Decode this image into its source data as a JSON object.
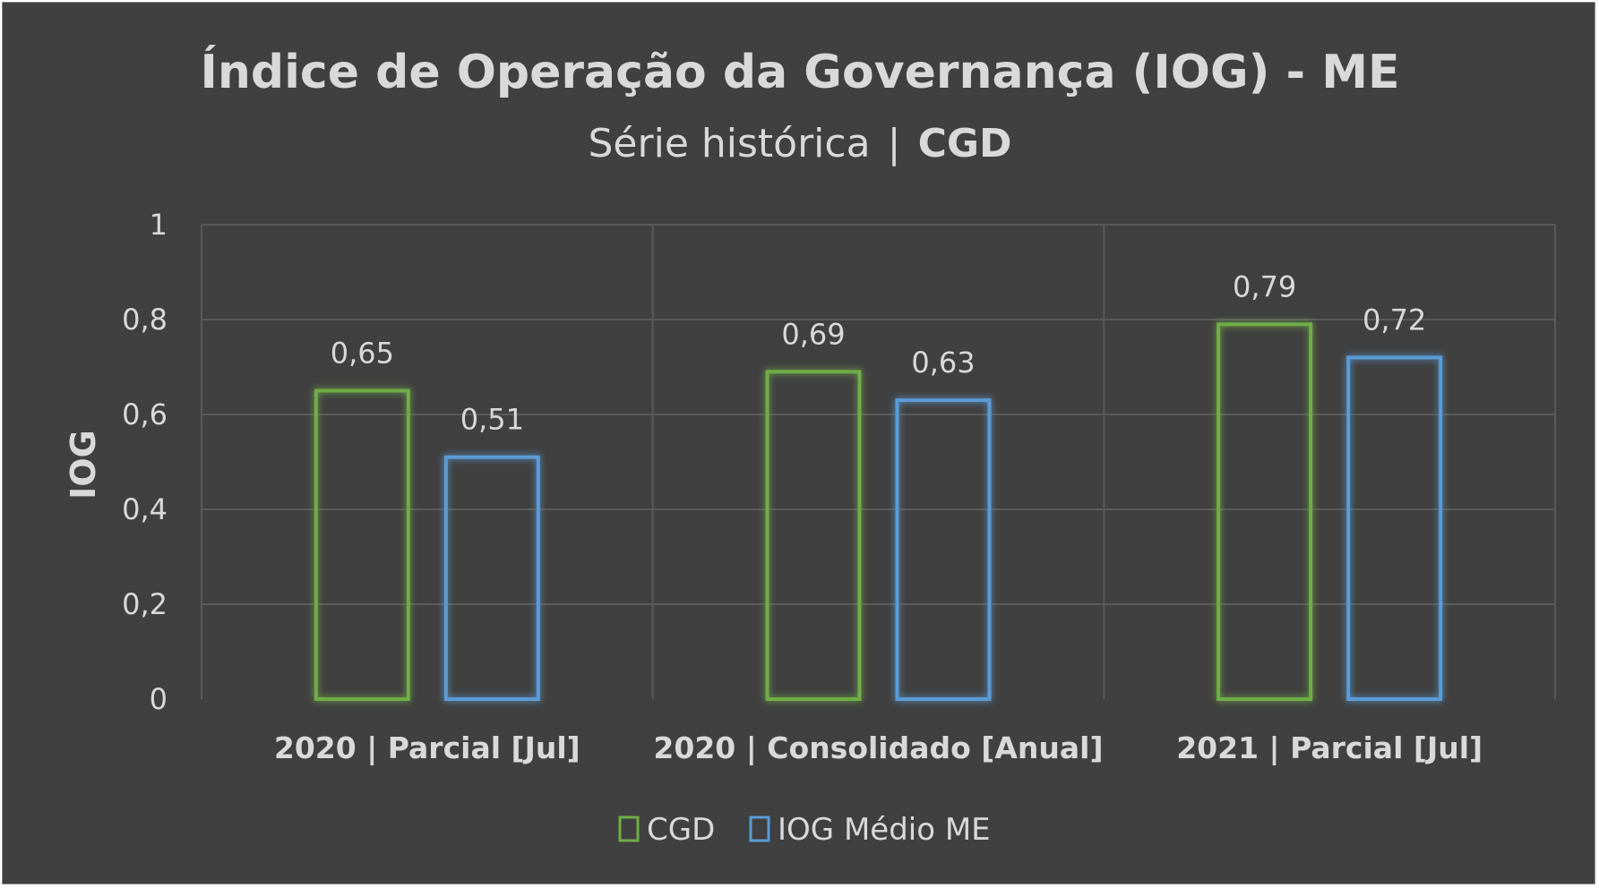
{
  "chart_data": {
    "type": "bar",
    "title": "Índice de Operação da Governança (IOG) - ME",
    "subtitle": "Série histórica",
    "subtitle_separator": "|",
    "subtitle_bold": "CGD",
    "ylabel": "IOG",
    "xlabel": "",
    "ylim": [
      0,
      1
    ],
    "yticks": [
      "0",
      "0,2",
      "0,4",
      "0,6",
      "0,8",
      "1"
    ],
    "categories": [
      "2020 | Parcial [Jul]",
      "2020 | Consolidado [Anual]",
      "2021 | Parcial [Jul]"
    ],
    "series": [
      {
        "name": "CGD",
        "values": [
          0.65,
          0.69,
          0.79
        ],
        "labels": [
          "0,65",
          "0,69",
          "0,79"
        ],
        "color": "#70ad47"
      },
      {
        "name": "IOG Médio ME",
        "values": [
          0.51,
          0.63,
          0.72
        ],
        "labels": [
          "0,51",
          "0,63",
          "0,72"
        ],
        "color": "#5b9bd5"
      }
    ],
    "grid": true,
    "legend_position": "bottom",
    "bar_style": "outline-glow"
  },
  "colors": {
    "background": "#404040",
    "text": "#d9d9d9",
    "grid": "#5a5a5a"
  }
}
